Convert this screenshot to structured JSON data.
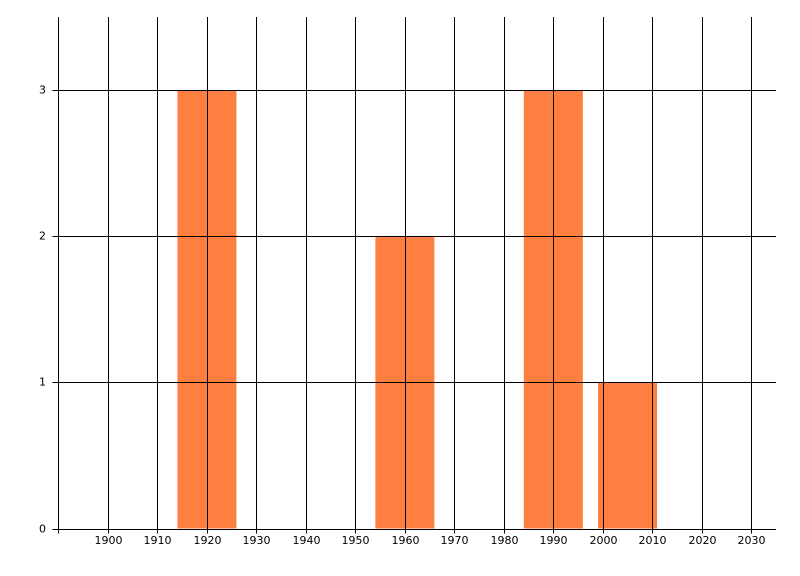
{
  "chart_data": {
    "type": "bar",
    "x": [
      1920,
      1960,
      1990,
      2005
    ],
    "values": [
      3,
      2,
      3,
      1
    ],
    "color": "#ff7f41",
    "xlim": [
      1890,
      2035
    ],
    "xticks": [
      1900,
      1910,
      1920,
      1930,
      1940,
      1950,
      1960,
      1970,
      1980,
      1990,
      2000,
      2010,
      2020,
      2030
    ],
    "ylim": [
      0,
      3.5
    ],
    "yticks": [
      0,
      1,
      2,
      3
    ],
    "grid": true
  }
}
